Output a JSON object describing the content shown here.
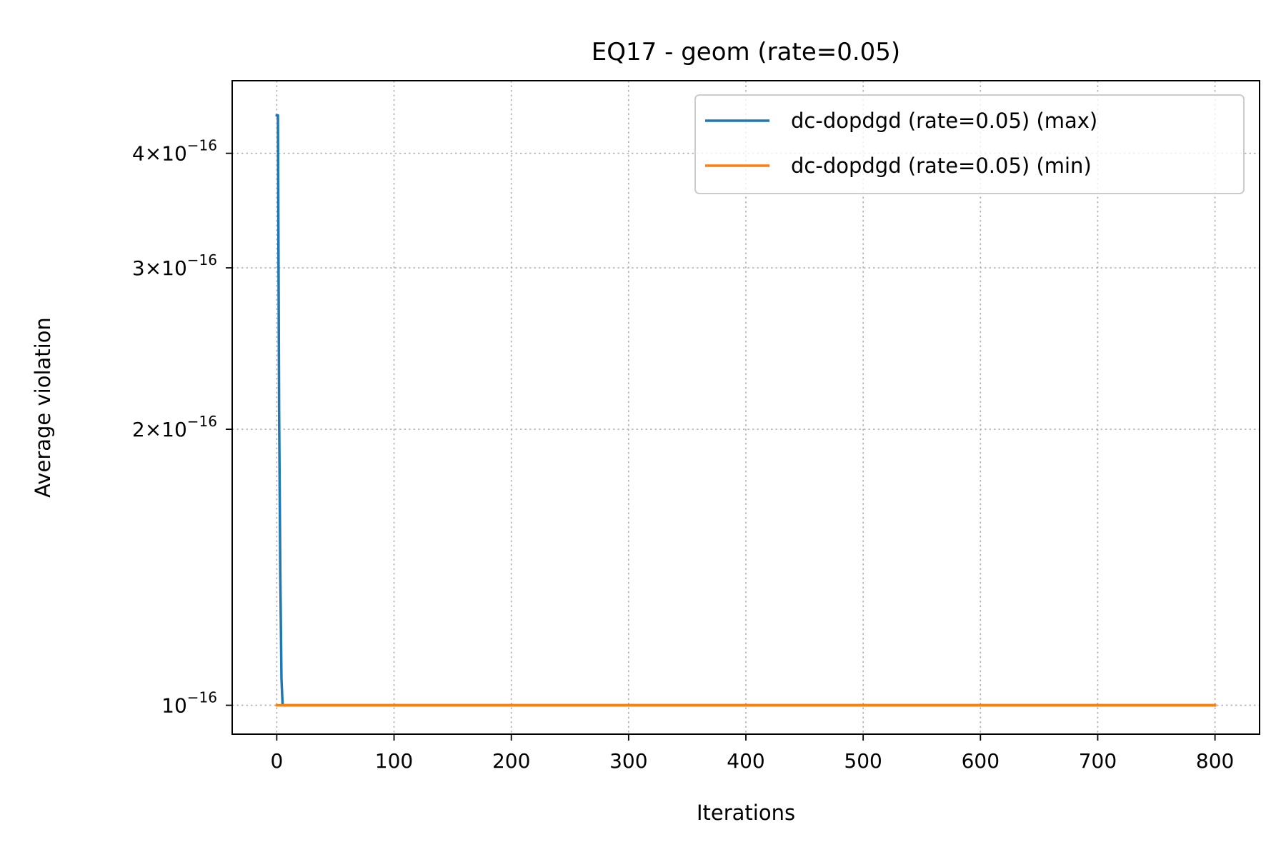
{
  "chart_data": {
    "type": "line",
    "title": "EQ17 - geom (rate=0.05)",
    "xlabel": "Iterations",
    "ylabel": "Average violation",
    "xlim": [
      -38,
      838
    ],
    "ylim": [
      9.3e-17,
      4.8e-16
    ],
    "yscale": "log",
    "grid": true,
    "legend_position": "top-right",
    "x_ticks": [
      0,
      100,
      200,
      300,
      400,
      500,
      600,
      700,
      800
    ],
    "x_tick_labels": [
      "0",
      "100",
      "200",
      "300",
      "400",
      "500",
      "600",
      "700",
      "800"
    ],
    "y_ticks": [
      {
        "value": 1e-16,
        "mantissa": "",
        "base": "10",
        "exponent": "−16"
      },
      {
        "value": 2e-16,
        "mantissa": "2",
        "base": "10",
        "exponent": "−16"
      },
      {
        "value": 3e-16,
        "mantissa": "3",
        "base": "10",
        "exponent": "−16"
      },
      {
        "value": 4e-16,
        "mantissa": "4",
        "base": "10",
        "exponent": "−16"
      }
    ],
    "series": [
      {
        "name": "dc-dopdgd (rate=0.05) (max)",
        "color": "#1f77b4",
        "x": [
          0,
          1,
          2,
          3,
          4,
          5,
          800
        ],
        "y": [
          4.4e-16,
          4.4e-16,
          2.1e-16,
          1.4e-16,
          1.07e-16,
          1e-16,
          1e-16
        ]
      },
      {
        "name": "dc-dopdgd (rate=0.05) (min)",
        "color": "#ff7f0e",
        "x": [
          0,
          800
        ],
        "y": [
          1e-16,
          1e-16
        ]
      }
    ]
  }
}
